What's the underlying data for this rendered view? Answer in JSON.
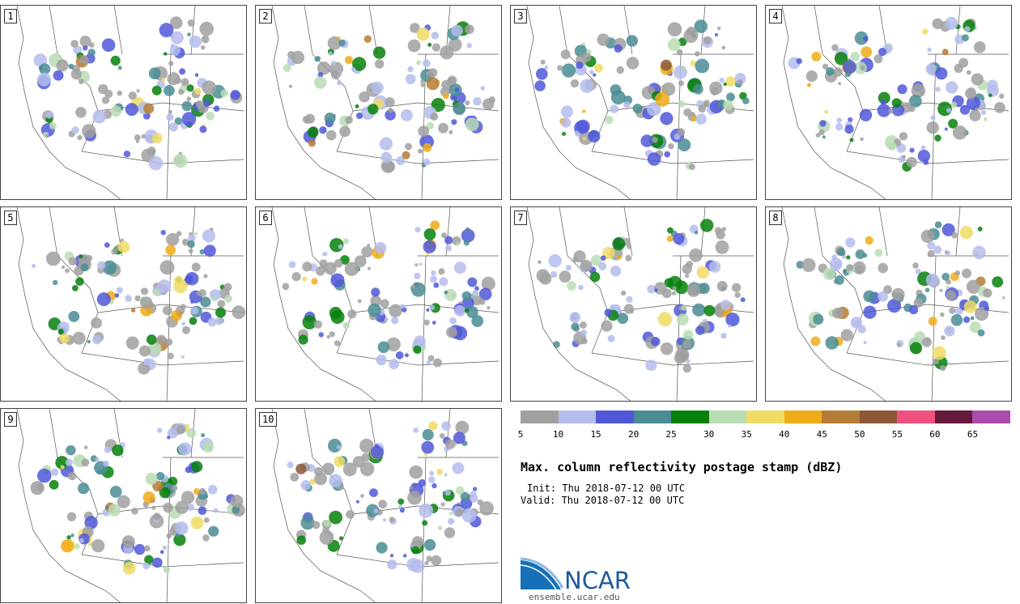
{
  "panels": [
    {
      "label": "1"
    },
    {
      "label": "2"
    },
    {
      "label": "3"
    },
    {
      "label": "4"
    },
    {
      "label": "5"
    },
    {
      "label": "6"
    },
    {
      "label": "7"
    },
    {
      "label": "8"
    },
    {
      "label": "9"
    },
    {
      "label": "10"
    }
  ],
  "colorbar": {
    "ticks": [
      "5",
      "10",
      "15",
      "20",
      "25",
      "30",
      "35",
      "40",
      "45",
      "50",
      "55",
      "60",
      "65"
    ],
    "colors": [
      "#a0a0a0",
      "#b4bcec",
      "#5058d8",
      "#4a8c94",
      "#06800a",
      "#b8dcb4",
      "#f0dc64",
      "#f0ac18",
      "#b47c34",
      "#8c5838",
      "#f05080",
      "#64183c",
      "#ac4cac"
    ]
  },
  "title": "Max. column reflectivity postage stamp (dBZ)",
  "init": "Init: Thu 2018-07-12 00 UTC",
  "valid": "Valid: Thu 2018-07-12 00 UTC",
  "logo": {
    "text": "NCAR",
    "site": "ensemble.ucar.edu"
  }
}
